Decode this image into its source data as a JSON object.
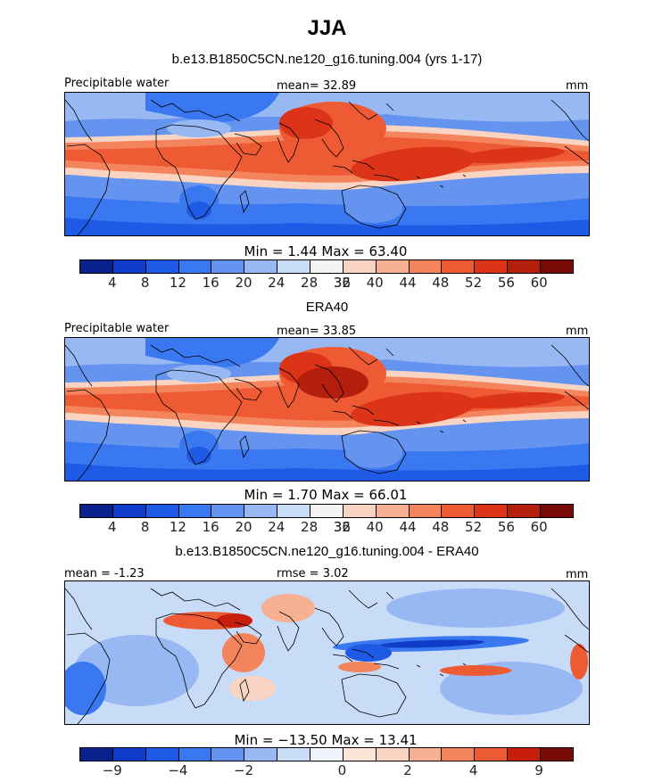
{
  "title": "JJA",
  "colors": {
    "palette": [
      "#08218c",
      "#0f3cc8",
      "#1f5ae6",
      "#3978f0",
      "#6494f0",
      "#98b8f4",
      "#c8dcf8",
      "#f4f4f4",
      "#fad4c2",
      "#f8b092",
      "#f4845c",
      "#ee5a34",
      "#dc3418",
      "#b41e0c",
      "#7a0a04"
    ],
    "diff_palette": [
      "#08218c",
      "#0f3cc8",
      "#1f5ae6",
      "#3978f0",
      "#6494f0",
      "#98b8f4",
      "#c8dcf8",
      "#f0f4fc",
      "#fce4d6",
      "#fad4c2",
      "#f8b092",
      "#f4845c",
      "#ee5a34",
      "#c81e0c",
      "#7a0a04"
    ]
  },
  "chart_data": [
    {
      "type": "heatmap",
      "subtitle": "b.e13.B1850C5CN.ne120_g16.tuning.004 (yrs 1-17)",
      "left_label": "Precipitable water",
      "center_label": "mean=  32.89",
      "right_label": "mm",
      "min_max_label": "Min =    1.44  Max =   63.40",
      "min": 1.44,
      "max": 63.4,
      "mean": 32.89,
      "colorbar_ticks": [
        "4",
        "8",
        "12",
        "16",
        "20",
        "24",
        "28",
        "32",
        "36",
        "40",
        "44",
        "48",
        "52",
        "56",
        "60"
      ]
    },
    {
      "type": "heatmap",
      "subtitle": "ERA40",
      "left_label": "Precipitable water",
      "center_label": "mean=  33.85",
      "right_label": "mm",
      "min_max_label": "Min =    1.70  Max =   66.01",
      "min": 1.7,
      "max": 66.01,
      "mean": 33.85,
      "colorbar_ticks": [
        "4",
        "8",
        "12",
        "16",
        "20",
        "24",
        "28",
        "32",
        "36",
        "40",
        "44",
        "48",
        "52",
        "56",
        "60"
      ]
    },
    {
      "type": "heatmap",
      "subtitle": "b.e13.B1850C5CN.ne120_g16.tuning.004 - ERA40",
      "left_label": "mean =  -1.23",
      "center_label": "rmse =   3.02",
      "right_label": "mm",
      "min_max_label": "Min = −13.50  Max =   13.41",
      "min": -13.5,
      "max": 13.41,
      "mean": -1.23,
      "rmse": 3.02,
      "colorbar_ticks": [
        "−9",
        "−4",
        "−2",
        "0",
        "2",
        "4",
        "9"
      ]
    }
  ]
}
